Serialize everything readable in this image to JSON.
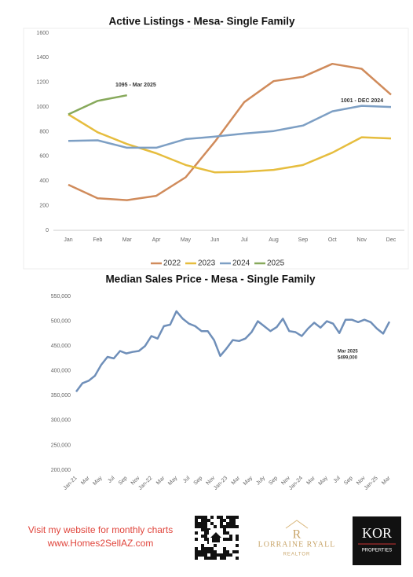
{
  "chart_data": [
    {
      "type": "line",
      "title": "Active Listings - Mesa-  Single Family",
      "categories": [
        "Jan",
        "Feb",
        "Mar",
        "Apr",
        "May",
        "Jun",
        "Jul",
        "Aug",
        "Sep",
        "Oct",
        "Nov",
        "Dec"
      ],
      "series": [
        {
          "name": "2022",
          "color": "#d08b5b",
          "values": [
            370,
            260,
            245,
            280,
            430,
            720,
            1040,
            1210,
            1245,
            1350,
            1310,
            1100
          ]
        },
        {
          "name": "2023",
          "color": "#e6bd3e",
          "values": [
            940,
            795,
            700,
            625,
            530,
            470,
            475,
            490,
            530,
            630,
            755,
            745
          ]
        },
        {
          "name": "2024",
          "color": "#7d9fc4",
          "values": [
            725,
            730,
            670,
            670,
            740,
            760,
            785,
            805,
            850,
            965,
            1010,
            1000
          ]
        },
        {
          "name": "2025",
          "color": "#87a95b",
          "values": [
            940,
            1050,
            1095,
            null,
            null,
            null,
            null,
            null,
            null,
            null,
            null,
            null
          ]
        }
      ],
      "ylim": [
        0,
        1600
      ],
      "yticks": [
        0,
        200,
        400,
        600,
        800,
        1000,
        1200,
        1400,
        1600
      ],
      "grid": false,
      "legend": "bottom",
      "annotations": [
        "1095 - Mar 2025",
        "1001 - DEC 2024"
      ]
    },
    {
      "type": "line",
      "title": "Median Sales Price -  Mesa - Single Family",
      "categories": [
        "Jan-21",
        null,
        "Mar",
        null,
        "May",
        null,
        "Jul",
        null,
        "Sep",
        null,
        "Nov",
        null,
        "Jan-22",
        null,
        "Mar",
        null,
        "May",
        null,
        "Jul",
        null,
        "Sep",
        null,
        "Nov",
        null,
        "Jan-23",
        null,
        "Mar",
        null,
        "May",
        null,
        "July",
        null,
        "Sep",
        null,
        "Nov",
        null,
        "Jan-24",
        null,
        "Mar",
        null,
        "May",
        null,
        "Jul",
        null,
        "Sep",
        null,
        "Nov",
        null,
        "Jan-25",
        null,
        "Mar"
      ],
      "series": [
        {
          "name": "Median Sales Price",
          "color": "#6f8fb9",
          "values": [
            358000,
            375000,
            380000,
            390000,
            412000,
            428000,
            425000,
            440000,
            435000,
            438000,
            440000,
            450000,
            470000,
            465000,
            490000,
            493000,
            520000,
            505000,
            495000,
            490000,
            480000,
            480000,
            462000,
            430000,
            445000,
            462000,
            460000,
            465000,
            478000,
            500000,
            490000,
            480000,
            488000,
            505000,
            480000,
            478000,
            470000,
            485000,
            497000,
            487000,
            500000,
            495000,
            476000,
            503000,
            503000,
            498000,
            503000,
            498000,
            485000,
            475000,
            499000
          ]
        }
      ],
      "ylim": [
        200000,
        550000
      ],
      "yticks": [
        {
          "value": 200000,
          "label": "200,000"
        },
        {
          "value": 250000,
          "label": "250,000"
        },
        {
          "value": 300000,
          "label": "300,000"
        },
        {
          "value": 350000,
          "label": "350,000"
        },
        {
          "value": 400000,
          "label": "400,000"
        },
        {
          "value": 450000,
          "label": "450,000"
        },
        {
          "value": 500000,
          "label": "500,000"
        },
        {
          "value": 550000,
          "label": "550,000"
        }
      ],
      "grid": false,
      "annotations": [
        "Mar 2025",
        "$499,000"
      ]
    }
  ],
  "footer": {
    "line1": "Visit my website for monthly charts",
    "line2": "www.Homes2SellAZ.com",
    "logo_initial": "R",
    "logo_name": "LORRAINE RYALL",
    "logo_title": "REALTOR",
    "brand": "KOR",
    "brand_sub": "PROPERTIES"
  }
}
